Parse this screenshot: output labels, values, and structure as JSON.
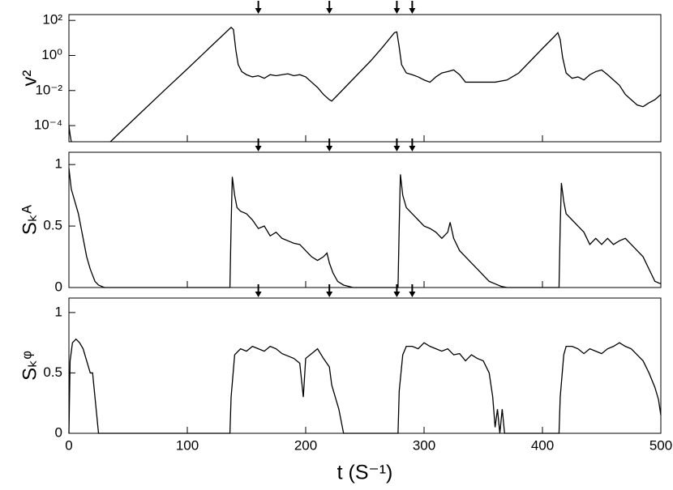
{
  "chart_data": [
    {
      "type": "line",
      "ylabel": "v²",
      "yscale": "log",
      "color": "#000000",
      "xlim": [
        0,
        500
      ],
      "xticks": [
        0,
        100,
        200,
        300,
        400,
        500
      ],
      "show_xtick_labels": false,
      "ylim": [
        1.2e-05,
        215
      ],
      "yticks": [
        {
          "value": 0.0001,
          "label": "10⁻⁴"
        },
        {
          "value": 0.01,
          "label": "10⁻²"
        },
        {
          "value": 1,
          "label": "10⁰"
        },
        {
          "value": 100,
          "label": "10²"
        }
      ],
      "arrows": [
        160,
        220,
        277,
        290
      ],
      "x": [
        0,
        1,
        2,
        3,
        35,
        60,
        80,
        100,
        120,
        137,
        139,
        141,
        143,
        146,
        150,
        155,
        160,
        165,
        170,
        175,
        180,
        185,
        190,
        195,
        200,
        205,
        210,
        215,
        220,
        222,
        225,
        235,
        245,
        255,
        265,
        275,
        277,
        279,
        281,
        285,
        290,
        295,
        300,
        305,
        310,
        315,
        320,
        325,
        330,
        335,
        340,
        350,
        360,
        370,
        380,
        390,
        400,
        410,
        413,
        415,
        417,
        420,
        425,
        430,
        435,
        440,
        445,
        450,
        455,
        460,
        465,
        470,
        475,
        480,
        485,
        490,
        495,
        500
      ],
      "values": [
        0.0001,
        3e-05,
        1.2e-05,
        null,
        1.2e-05,
        0.00049,
        0.0093,
        0.17,
        3.3,
        40,
        30,
        2,
        0.3,
        0.12,
        0.08,
        0.06,
        0.07,
        0.05,
        0.08,
        0.07,
        0.08,
        0.09,
        0.07,
        0.08,
        0.06,
        0.03,
        0.015,
        0.006,
        0.003,
        0.0025,
        0.004,
        0.02,
        0.1,
        0.5,
        3,
        20,
        22,
        3,
        0.3,
        0.1,
        0.08,
        0.06,
        0.04,
        0.03,
        0.06,
        0.1,
        0.12,
        0.15,
        0.08,
        0.03,
        0.03,
        0.03,
        0.03,
        0.04,
        0.1,
        0.5,
        2.5,
        12,
        20,
        8,
        0.8,
        0.1,
        0.05,
        0.06,
        0.04,
        0.08,
        0.12,
        0.15,
        0.08,
        0.04,
        0.02,
        0.006,
        0.003,
        0.0015,
        0.0012,
        0.002,
        0.003,
        0.006
      ]
    },
    {
      "type": "line",
      "ylabel": "Sₖᴬ",
      "color": "#000000",
      "xlim": [
        0,
        500
      ],
      "xticks": [
        0,
        100,
        200,
        300,
        400,
        500
      ],
      "show_xtick_labels": false,
      "ylim": [
        0,
        1.1
      ],
      "yticks": [
        0,
        0.5,
        1
      ],
      "arrows": [
        160,
        220,
        277,
        290
      ],
      "x": [
        0,
        2,
        5,
        8,
        10,
        12,
        15,
        18,
        20,
        22,
        25,
        30,
        136,
        137,
        138,
        140,
        142,
        145,
        150,
        155,
        160,
        165,
        170,
        175,
        180,
        185,
        190,
        195,
        200,
        205,
        210,
        215,
        218,
        220,
        223,
        227,
        232,
        240,
        278,
        279,
        280,
        282,
        285,
        290,
        295,
        300,
        305,
        310,
        315,
        320,
        322,
        325,
        330,
        335,
        340,
        345,
        350,
        355,
        360,
        365,
        370,
        414,
        415,
        416,
        418,
        420,
        425,
        430,
        435,
        440,
        445,
        450,
        455,
        460,
        465,
        470,
        475,
        480,
        485,
        490,
        495,
        500
      ],
      "values": [
        0.97,
        0.8,
        0.7,
        0.6,
        0.5,
        0.4,
        0.25,
        0.15,
        0.1,
        0.05,
        0.02,
        0,
        0,
        0.5,
        0.9,
        0.75,
        0.65,
        0.62,
        0.6,
        0.55,
        0.48,
        0.5,
        0.42,
        0.45,
        0.4,
        0.38,
        0.36,
        0.35,
        0.3,
        0.25,
        0.22,
        0.25,
        0.28,
        0.2,
        0.12,
        0.05,
        0.02,
        0,
        0,
        0.5,
        0.92,
        0.75,
        0.65,
        0.6,
        0.55,
        0.5,
        0.48,
        0.45,
        0.4,
        0.45,
        0.53,
        0.4,
        0.3,
        0.25,
        0.2,
        0.15,
        0.1,
        0.05,
        0.03,
        0.01,
        0,
        0,
        0.5,
        0.85,
        0.7,
        0.6,
        0.55,
        0.5,
        0.45,
        0.35,
        0.4,
        0.35,
        0.4,
        0.35,
        0.38,
        0.4,
        0.35,
        0.3,
        0.25,
        0.15,
        0.05,
        0.03
      ]
    },
    {
      "type": "line",
      "ylabel": "Sₖᵠ",
      "xlabel": "t (S⁻¹)",
      "color": "#000000",
      "xlim": [
        0,
        500
      ],
      "xticks": [
        0,
        100,
        200,
        300,
        400,
        500
      ],
      "show_xtick_labels": true,
      "ylim": [
        0,
        1.12
      ],
      "yticks": [
        0,
        0.5,
        1
      ],
      "arrows": [
        160,
        220,
        277,
        290
      ],
      "x": [
        0,
        1,
        3,
        6,
        9,
        12,
        15,
        18,
        20,
        22,
        24,
        25,
        136,
        137,
        140,
        145,
        150,
        155,
        160,
        165,
        170,
        175,
        180,
        185,
        190,
        195,
        198,
        200,
        205,
        210,
        215,
        220,
        222,
        225,
        228,
        230,
        232,
        278,
        279,
        282,
        285,
        290,
        295,
        300,
        305,
        310,
        315,
        320,
        325,
        330,
        335,
        340,
        345,
        350,
        355,
        358,
        360,
        362,
        364,
        366,
        368,
        414,
        415,
        418,
        420,
        425,
        430,
        435,
        440,
        445,
        450,
        455,
        460,
        465,
        470,
        475,
        480,
        485,
        490,
        495,
        498,
        500
      ],
      "values": [
        0,
        0.6,
        0.75,
        0.78,
        0.75,
        0.7,
        0.6,
        0.5,
        0.5,
        0.3,
        0.1,
        0,
        0,
        0.3,
        0.65,
        0.7,
        0.68,
        0.72,
        0.7,
        0.68,
        0.72,
        0.7,
        0.66,
        0.64,
        0.62,
        0.58,
        0.3,
        0.62,
        0.66,
        0.7,
        0.62,
        0.55,
        0.4,
        0.3,
        0.2,
        0.1,
        0,
        0,
        0.35,
        0.65,
        0.72,
        0.72,
        0.7,
        0.75,
        0.72,
        0.7,
        0.68,
        0.7,
        0.65,
        0.66,
        0.6,
        0.65,
        0.62,
        0.6,
        0.5,
        0.3,
        0.05,
        0.2,
        0,
        0.2,
        0,
        0,
        0.3,
        0.65,
        0.72,
        0.72,
        0.7,
        0.66,
        0.7,
        0.68,
        0.66,
        0.7,
        0.72,
        0.75,
        0.72,
        0.7,
        0.65,
        0.6,
        0.5,
        0.38,
        0.28,
        0.15
      ]
    }
  ]
}
